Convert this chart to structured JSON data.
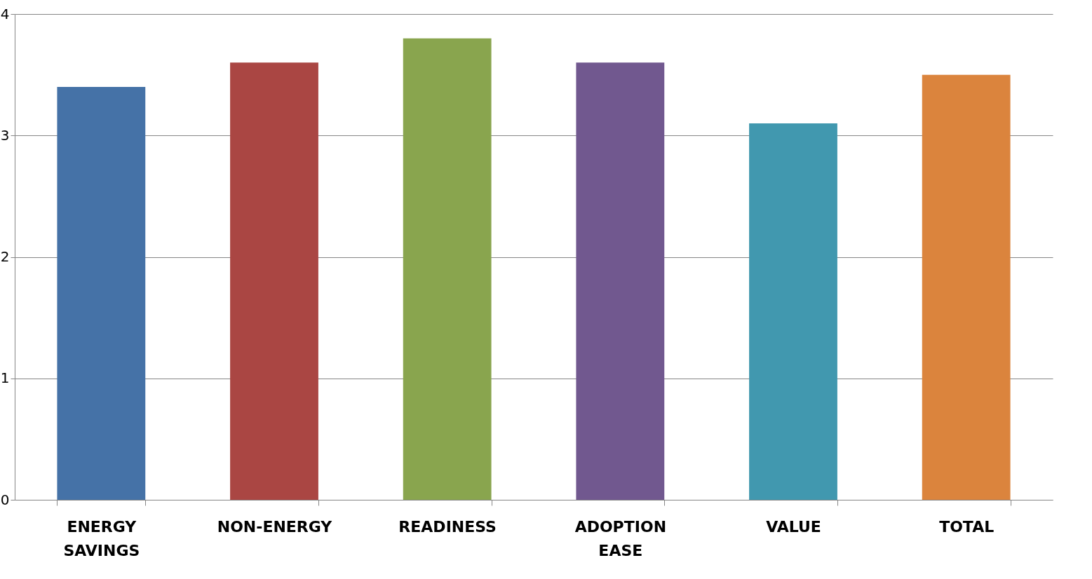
{
  "chart_data": {
    "type": "bar",
    "categories": [
      "ENERGY SAVINGS",
      "NON-ENERGY",
      "READINESS",
      "ADOPTION EASE",
      "VALUE",
      "TOTAL"
    ],
    "values": [
      3.4,
      3.6,
      3.8,
      3.6,
      3.1,
      3.5
    ],
    "colors": [
      "#4572a7",
      "#aa4643",
      "#89a54e",
      "#71588f",
      "#4198af",
      "#db843d"
    ],
    "ylim": [
      0,
      4
    ],
    "yticks": [
      0,
      1,
      2,
      3,
      4
    ],
    "grid": "y"
  }
}
